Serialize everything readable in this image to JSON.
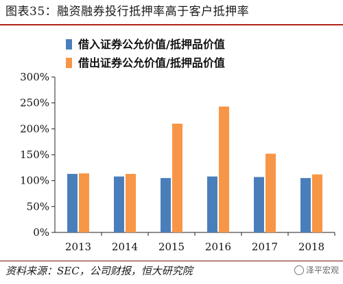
{
  "title": "图表35：融资融券投行抵押率高于客户抵押率",
  "source": "资料来源：SEC，公司财报，恒大研究院",
  "watermark": "泽平宏观",
  "colors": {
    "series1": "#4a7ebb",
    "series2": "#f79646",
    "title_rule": "#b02418"
  },
  "chart_data": {
    "type": "bar",
    "categories": [
      "2013",
      "2014",
      "2015",
      "2016",
      "2017",
      "2018"
    ],
    "series": [
      {
        "name": "借入证券公允价值/抵押品价值",
        "values": [
          113,
          108,
          105,
          108,
          107,
          105
        ],
        "color": "#4a7ebb"
      },
      {
        "name": "借出证券公允价值/抵押品价值",
        "values": [
          114,
          113,
          210,
          243,
          152,
          112
        ],
        "color": "#f79646"
      }
    ],
    "ylim": [
      0,
      300
    ],
    "yticks": [
      "0%",
      "50%",
      "100%",
      "150%",
      "200%",
      "250%",
      "300%"
    ],
    "legend": "top-center",
    "grid": false
  }
}
